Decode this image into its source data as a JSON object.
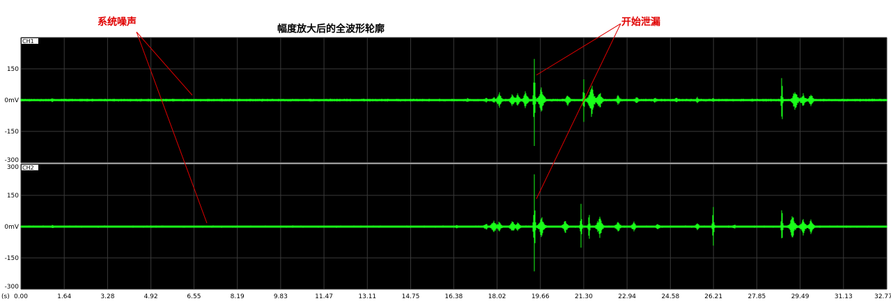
{
  "chart_data": {
    "type": "line",
    "title": "幅度放大后的全波形轮廓",
    "x_unit_label": "(s)",
    "x_ticks": [
      "0.00",
      "1.64",
      "3.28",
      "4.92",
      "6.55",
      "8.19",
      "9.83",
      "11.47",
      "13.11",
      "14.75",
      "16.38",
      "18.02",
      "19.66",
      "21.30",
      "22.94",
      "24.58",
      "26.21",
      "27.85",
      "29.49",
      "31.13",
      "32.77"
    ],
    "xlim": [
      0,
      32.77
    ],
    "ylim": [
      -300,
      300
    ],
    "grid": true,
    "line_color": "#19ff19",
    "background": "#000000",
    "panels": [
      {
        "name": "CH1",
        "y_ticks": [
          "150",
          "0mV",
          "-150",
          "-300"
        ],
        "y_values": [
          150,
          0,
          -150,
          -300
        ],
        "noise_level": 5,
        "events": [
          {
            "x": 1.2,
            "amp": 12
          },
          {
            "x": 11.2,
            "amp": 6
          },
          {
            "x": 12.1,
            "amp": 8
          },
          {
            "x": 16.9,
            "amp": 10
          },
          {
            "x": 17.6,
            "amp": 14
          },
          {
            "x": 17.9,
            "amp": 18
          },
          {
            "x": 18.1,
            "amp": 40
          },
          {
            "x": 18.6,
            "amp": 35
          },
          {
            "x": 18.8,
            "amp": 30
          },
          {
            "x": 19.1,
            "amp": 45
          },
          {
            "x": 19.43,
            "amp": 290
          },
          {
            "x": 19.7,
            "amp": 70
          },
          {
            "x": 20.7,
            "amp": 30
          },
          {
            "x": 21.3,
            "amp": 140
          },
          {
            "x": 21.6,
            "amp": 100
          },
          {
            "x": 21.9,
            "amp": 50
          },
          {
            "x": 22.6,
            "amp": 25
          },
          {
            "x": 23.3,
            "amp": 20
          },
          {
            "x": 24.0,
            "amp": 15
          },
          {
            "x": 24.8,
            "amp": 14
          },
          {
            "x": 25.6,
            "amp": 15
          },
          {
            "x": 26.2,
            "amp": 12
          },
          {
            "x": 28.2,
            "amp": 8
          },
          {
            "x": 28.8,
            "amp": 180
          },
          {
            "x": 29.3,
            "amp": 60
          },
          {
            "x": 29.6,
            "amp": 40
          },
          {
            "x": 29.9,
            "amp": 35
          }
        ]
      },
      {
        "name": "CH2",
        "y_ticks": [
          "300",
          "150",
          "0mV",
          "-150",
          "-300"
        ],
        "y_values": [
          300,
          150,
          0,
          -150,
          -300
        ],
        "noise_level": 4,
        "events": [
          {
            "x": 1.2,
            "amp": 10
          },
          {
            "x": 16.5,
            "amp": 12
          },
          {
            "x": 17.6,
            "amp": 18
          },
          {
            "x": 17.9,
            "amp": 40
          },
          {
            "x": 18.1,
            "amp": 30
          },
          {
            "x": 18.6,
            "amp": 35
          },
          {
            "x": 18.8,
            "amp": 28
          },
          {
            "x": 19.43,
            "amp": 300
          },
          {
            "x": 19.7,
            "amp": 60
          },
          {
            "x": 20.6,
            "amp": 35
          },
          {
            "x": 21.2,
            "amp": 150
          },
          {
            "x": 21.5,
            "amp": 110
          },
          {
            "x": 21.9,
            "amp": 60
          },
          {
            "x": 22.6,
            "amp": 30
          },
          {
            "x": 23.2,
            "amp": 25
          },
          {
            "x": 24.1,
            "amp": 18
          },
          {
            "x": 25.6,
            "amp": 20
          },
          {
            "x": 26.2,
            "amp": 150
          },
          {
            "x": 27.0,
            "amp": 12
          },
          {
            "x": 28.8,
            "amp": 170
          },
          {
            "x": 29.2,
            "amp": 70
          },
          {
            "x": 29.6,
            "amp": 45
          },
          {
            "x": 29.9,
            "amp": 40
          }
        ]
      }
    ],
    "annotations": [
      {
        "text": "系统噪声"
      },
      {
        "text": "开始泄漏"
      }
    ]
  }
}
